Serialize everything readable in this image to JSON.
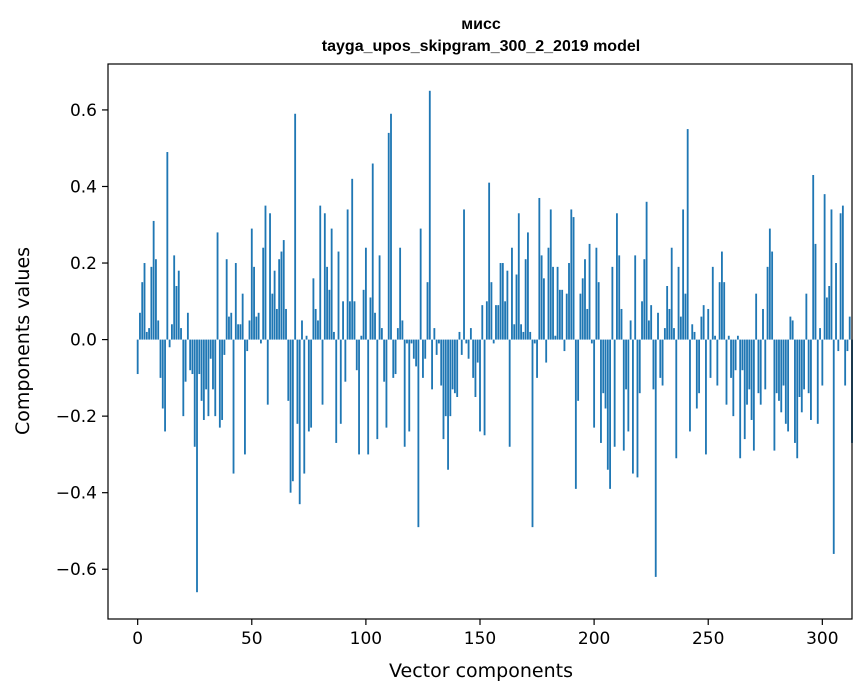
{
  "chart_data": {
    "type": "bar",
    "title": "мисс",
    "subtitle": "tayga_upos_skipgram_300_2_2019 model",
    "xlabel": "Vector components",
    "ylabel": "Components values",
    "xlim": [
      -13,
      313
    ],
    "ylim": [
      -0.73,
      0.72
    ],
    "xticks": [
      0,
      50,
      100,
      150,
      200,
      250,
      300
    ],
    "xtick_labels": [
      "0",
      "50",
      "100",
      "150",
      "200",
      "250",
      "300"
    ],
    "yticks": [
      -0.6,
      -0.4,
      -0.2,
      0.0,
      0.2,
      0.4,
      0.6
    ],
    "ytick_labels": [
      "−0.6",
      "−0.4",
      "−0.2",
      "0.0",
      "0.2",
      "0.4",
      "0.6"
    ],
    "bar_color": "#1f77b4",
    "values": [
      -0.09,
      0.07,
      0.15,
      0.2,
      0.02,
      0.03,
      0.19,
      0.31,
      0.21,
      0.05,
      -0.1,
      -0.18,
      -0.24,
      0.49,
      -0.02,
      0.04,
      0.22,
      0.14,
      0.18,
      0.03,
      -0.2,
      -0.11,
      0.07,
      -0.08,
      -0.09,
      -0.28,
      -0.66,
      -0.09,
      -0.16,
      -0.21,
      -0.13,
      -0.2,
      -0.05,
      -0.13,
      -0.2,
      0.28,
      -0.23,
      -0.21,
      -0.04,
      0.21,
      0.06,
      0.07,
      -0.35,
      0.2,
      0.04,
      0.04,
      0.12,
      -0.3,
      -0.03,
      0.05,
      0.29,
      0.19,
      0.06,
      0.07,
      -0.01,
      0.24,
      0.35,
      -0.17,
      0.33,
      0.12,
      0.18,
      0.08,
      0.21,
      0.23,
      0.26,
      0.08,
      -0.16,
      -0.4,
      -0.37,
      0.59,
      -0.22,
      -0.43,
      0.05,
      -0.35,
      0.01,
      -0.24,
      -0.23,
      0.16,
      0.08,
      0.05,
      0.35,
      -0.17,
      0.33,
      0.19,
      0.13,
      0.29,
      0.02,
      -0.27,
      0.23,
      -0.22,
      0.1,
      -0.11,
      0.34,
      0.1,
      0.42,
      0.1,
      -0.08,
      -0.3,
      0.01,
      0.13,
      0.24,
      -0.3,
      0.11,
      0.46,
      0.07,
      -0.26,
      0.22,
      0.03,
      -0.11,
      -0.23,
      0.54,
      0.59,
      -0.1,
      -0.09,
      0.03,
      0.24,
      0.05,
      -0.28,
      -0.01,
      -0.24,
      -0.01,
      -0.05,
      -0.07,
      -0.49,
      0.29,
      -0.1,
      -0.05,
      0.15,
      0.65,
      -0.13,
      0.03,
      -0.04,
      -0.01,
      -0.12,
      -0.26,
      -0.2,
      -0.34,
      -0.2,
      -0.13,
      -0.14,
      -0.15,
      0.02,
      -0.04,
      0.34,
      -0.01,
      -0.05,
      0.03,
      -0.1,
      -0.15,
      -0.06,
      -0.24,
      0.09,
      -0.25,
      0.1,
      0.41,
      0.15,
      -0.01,
      0.09,
      0.09,
      0.2,
      0.2,
      0.1,
      0.18,
      -0.28,
      0.24,
      0.04,
      0.17,
      0.33,
      0.04,
      0.02,
      0.21,
      0.28,
      0.02,
      -0.49,
      -0.01,
      -0.1,
      0.37,
      0.22,
      0.16,
      -0.06,
      0.24,
      0.34,
      0.19,
      0.01,
      0.19,
      0.13,
      0.13,
      -0.03,
      0.12,
      0.2,
      0.34,
      0.32,
      -0.39,
      -0.16,
      0.12,
      0.16,
      0.21,
      0.08,
      0.25,
      -0.01,
      -0.23,
      0.24,
      0.15,
      -0.27,
      -0.14,
      -0.18,
      -0.34,
      -0.39,
      0.19,
      -0.28,
      0.33,
      0.22,
      0.08,
      -0.29,
      -0.13,
      -0.24,
      0.05,
      -0.35,
      0.22,
      -0.36,
      -0.14,
      0.1,
      0.21,
      0.36,
      0.05,
      0.09,
      -0.13,
      -0.62,
      0.07,
      -0.1,
      -0.12,
      0.03,
      0.14,
      0.08,
      0.24,
      0.03,
      -0.31,
      0.19,
      0.06,
      0.34,
      0.12,
      0.55,
      -0.24,
      0.04,
      0.02,
      -0.18,
      -0.14,
      0.06,
      0.09,
      -0.3,
      0.08,
      -0.1,
      0.19,
      0.01,
      -0.12,
      0.15,
      0.23,
      0.15,
      -0.17,
      0.01,
      -0.1,
      -0.2,
      -0.08,
      0.01,
      -0.31,
      -0.08,
      -0.26,
      -0.17,
      -0.13,
      -0.21,
      -0.29,
      0.12,
      -0.14,
      -0.17,
      0.08,
      -0.13,
      0.19,
      0.29,
      0.23,
      -0.29,
      -0.14,
      -0.16,
      -0.19,
      -0.12,
      -0.22,
      -0.24,
      0.06,
      0.05,
      -0.27,
      -0.31,
      -0.15,
      -0.19,
      -0.13,
      0.12,
      -0.14,
      -0.21,
      0.43,
      0.25,
      -0.22,
      0.03,
      -0.12,
      0.38,
      0.11,
      0.14,
      0.34,
      -0.56,
      0.2,
      -0.03,
      0.33,
      0.35,
      -0.12,
      -0.03,
      0.06,
      -0.27
    ]
  }
}
